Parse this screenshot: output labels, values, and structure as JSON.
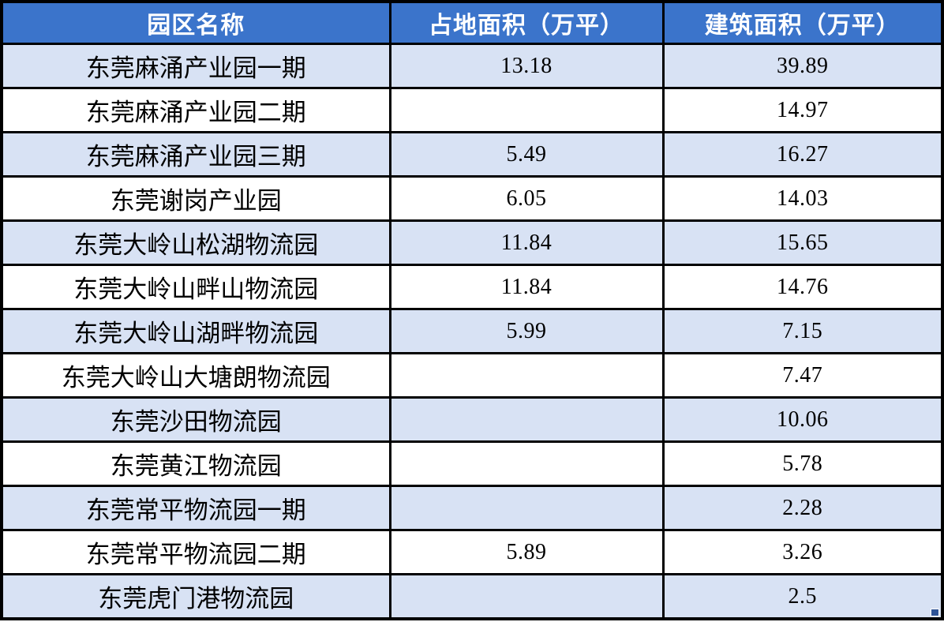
{
  "chart_data": {
    "type": "table",
    "title": "",
    "columns": [
      "园区名称",
      "占地面积（万平）",
      "建筑面积（万平）"
    ],
    "rows": [
      {
        "name": "东莞麻涌产业园一期",
        "land": "13.18",
        "building": "39.89"
      },
      {
        "name": "东莞麻涌产业园二期",
        "land": "",
        "building": "14.97"
      },
      {
        "name": "东莞麻涌产业园三期",
        "land": "5.49",
        "building": "16.27"
      },
      {
        "name": "东莞谢岗产业园",
        "land": "6.05",
        "building": "14.03"
      },
      {
        "name": "东莞大岭山松湖物流园",
        "land": "11.84",
        "building": "15.65"
      },
      {
        "name": "东莞大岭山畔山物流园",
        "land": "11.84",
        "building": "14.76"
      },
      {
        "name": "东莞大岭山湖畔物流园",
        "land": "5.99",
        "building": "7.15"
      },
      {
        "name": "东莞大岭山大塘朗物流园",
        "land": "",
        "building": "7.47"
      },
      {
        "name": "东莞沙田物流园",
        "land": "",
        "building": "10.06"
      },
      {
        "name": "东莞黄江物流园",
        "land": "",
        "building": "5.78"
      },
      {
        "name": "东莞常平物流园一期",
        "land": "",
        "building": "2.28"
      },
      {
        "name": "东莞常平物流园二期",
        "land": "5.89",
        "building": "3.26"
      },
      {
        "name": "东莞虎门港物流园",
        "land": "",
        "building": "2.5"
      }
    ],
    "layout": {
      "grid": true,
      "alternating_rows": true,
      "first_data_row_shaded": true
    }
  },
  "colors": {
    "header_bg": "#3B74CB",
    "header_text": "#FFFFFF",
    "row_alt_bg": "#D8E2F4",
    "row_bg": "#FFFFFF",
    "border": "#000000",
    "body_text": "#000000",
    "fill_handle": "#2F5496"
  }
}
